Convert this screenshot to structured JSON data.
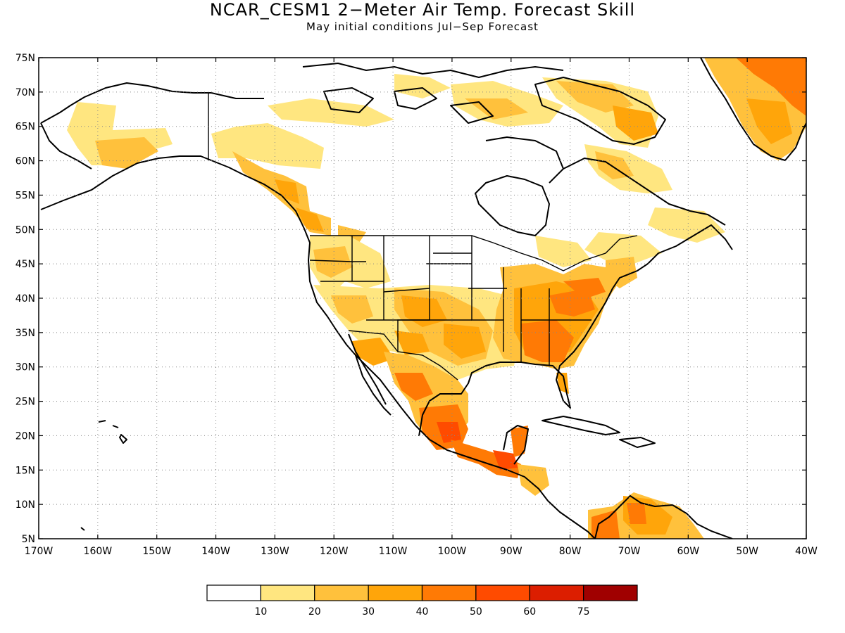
{
  "title": "NCAR_CESM1 2−Meter Air Temp. Forecast Skill",
  "subtitle": "May initial conditions   Jul−Sep Forecast",
  "map": {
    "lat_labels": [
      "75N",
      "70N",
      "65N",
      "60N",
      "55N",
      "50N",
      "45N",
      "40N",
      "35N",
      "30N",
      "25N",
      "20N",
      "15N",
      "10N",
      "5N"
    ],
    "lon_labels": [
      "170W",
      "160W",
      "150W",
      "140W",
      "130W",
      "120W",
      "110W",
      "100W",
      "90W",
      "80W",
      "70W",
      "60W",
      "50W",
      "40W"
    ],
    "lat_range": [
      5,
      75
    ],
    "lon_range": [
      -170,
      -40
    ],
    "grid": "dotted"
  },
  "legend": {
    "labels": [
      "10",
      "20",
      "30",
      "40",
      "50",
      "60",
      "75"
    ],
    "colors": [
      "#ffffff",
      "#ffe680",
      "#ffc13c",
      "#ffa50a",
      "#ff7a05",
      "#ff4b00",
      "#dc1e00",
      "#a00000"
    ]
  }
}
